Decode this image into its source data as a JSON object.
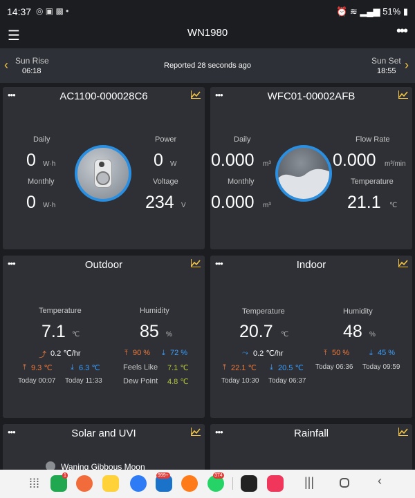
{
  "status": {
    "time": "14:37",
    "battery": "51%"
  },
  "appbar": {
    "title": "WN1980"
  },
  "sun": {
    "rise_label": "Sun Rise",
    "rise": "06:18",
    "set_label": "Sun Set",
    "set": "18:55",
    "reported": "Reported 28 seconds ago"
  },
  "power": {
    "title": "AC1100-000028C6",
    "daily_label": "Daily",
    "daily": "0",
    "daily_unit": "W·h",
    "monthly_label": "Monthly",
    "monthly": "0",
    "monthly_unit": "W·h",
    "power_label": "Power",
    "power": "0",
    "power_unit": "W",
    "voltage_label": "Voltage",
    "voltage": "234",
    "voltage_unit": "V"
  },
  "water": {
    "title": "WFC01-00002AFB",
    "daily_label": "Daily",
    "daily": "0.000",
    "daily_unit": "m³",
    "monthly_label": "Monthly",
    "monthly": "0.000",
    "monthly_unit": "m³",
    "flow_label": "Flow Rate",
    "flow": "0.000",
    "flow_unit": "m³/min",
    "temp_label": "Temperature",
    "temp": "21.1",
    "temp_unit": "℃"
  },
  "outdoor": {
    "title": "Outdoor",
    "temp_label": "Temperature",
    "temp": "7.1",
    "temp_unit": "℃",
    "hum_label": "Humidity",
    "hum": "85",
    "hum_unit": "%",
    "trend": "0.2 ℃/hr",
    "temp_high": "9.3 ℃",
    "temp_low": "6.3 ℃",
    "temp_high_time": "Today 00:07",
    "temp_low_time": "Today 11:33",
    "hum_high": "90 %",
    "hum_low": "72 %",
    "feels_label": "Feels Like",
    "feels": "7.1 ℃",
    "dew_label": "Dew Point",
    "dew": "4.8 ℃"
  },
  "indoor": {
    "title": "Indoor",
    "temp_label": "Temperature",
    "temp": "20.7",
    "temp_unit": "℃",
    "hum_label": "Humidity",
    "hum": "48",
    "hum_unit": "%",
    "trend": "0.2 ℃/hr",
    "temp_high": "22.1 ℃",
    "temp_low": "20.5 ℃",
    "temp_high_time": "Today 10:30",
    "temp_low_time": "Today 06:37",
    "hum_high": "50 %",
    "hum_low": "45 %",
    "hum_high_time": "Today 06:36",
    "hum_low_time": "Today 09:59"
  },
  "solar": {
    "title": "Solar and UVI",
    "moon": "Waning Gibbous Moon"
  },
  "rain": {
    "title": "Rainfall"
  },
  "dock": {
    "badge_phone": "1",
    "badge_outlook": "999+",
    "badge_whatsapp": "374"
  },
  "colors": {
    "accent": "#f5c542",
    "high": "#f07a3c",
    "low": "#3aa0ff",
    "green": "#b6c93c",
    "card": "#2e3035"
  }
}
